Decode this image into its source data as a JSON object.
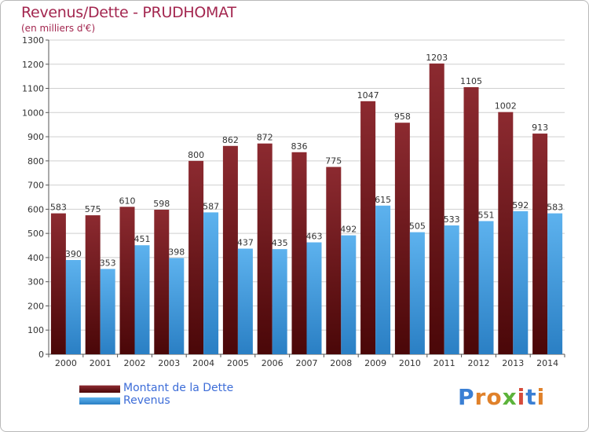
{
  "header": {
    "title": "Revenus/Dette - PRUDHOMAT",
    "subtitle": "(en milliers d'€)"
  },
  "legend": {
    "items": [
      {
        "label": "Montant de la Dette",
        "color": "#7a1d22"
      },
      {
        "label": "Revenus",
        "color": "#3f9be0"
      }
    ]
  },
  "logo": {
    "text": "Proxiti",
    "letters": [
      {
        "ch": "P",
        "color": "#3a7fd4"
      },
      {
        "ch": "r",
        "color": "#e0812a"
      },
      {
        "ch": "o",
        "color": "#e0812a"
      },
      {
        "ch": "x",
        "color": "#5cb33a"
      },
      {
        "ch": "i",
        "color": "#d64a3a"
      },
      {
        "ch": "t",
        "color": "#3a7fd4"
      },
      {
        "ch": "i",
        "color": "#e0812a"
      }
    ]
  },
  "chart_data": {
    "type": "bar",
    "title": "Revenus/Dette - PRUDHOMAT",
    "subtitle": "(en milliers d'€)",
    "categories": [
      "2000",
      "2001",
      "2002",
      "2003",
      "2004",
      "2005",
      "2006",
      "2007",
      "2008",
      "2009",
      "2010",
      "2011",
      "2012",
      "2013",
      "2014"
    ],
    "series": [
      {
        "name": "Montant de la Dette",
        "color": "#7a1d22",
        "values": [
          583,
          575,
          610,
          598,
          800,
          862,
          872,
          836,
          775,
          1047,
          958,
          1203,
          1105,
          1002,
          913
        ]
      },
      {
        "name": "Revenus",
        "color": "#3f9be0",
        "values": [
          390,
          353,
          451,
          398,
          587,
          437,
          435,
          463,
          492,
          615,
          505,
          533,
          551,
          592,
          583
        ]
      }
    ],
    "ylim": [
      0,
      1300
    ],
    "yticks": [
      0,
      100,
      200,
      300,
      400,
      500,
      600,
      700,
      800,
      900,
      1000,
      1100,
      1200,
      1300
    ],
    "grid": true,
    "legend_position": "bottom-left"
  }
}
